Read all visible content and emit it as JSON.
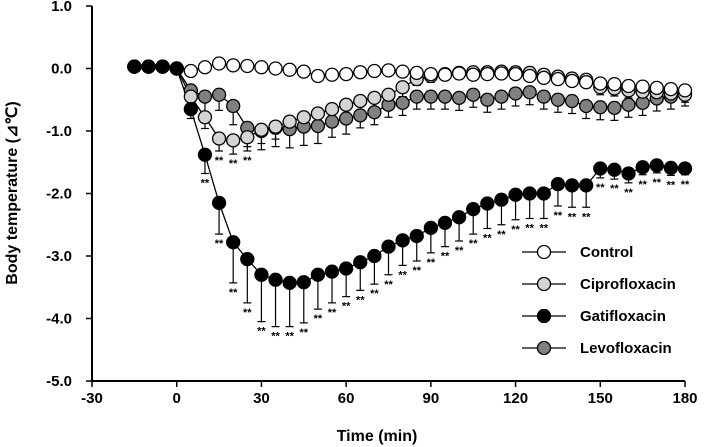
{
  "chart_data": {
    "type": "line",
    "title": "",
    "xlabel": "Time (min)",
    "ylabel": "Body temperature (⊿℃)",
    "xlim": [
      -30,
      180
    ],
    "ylim": [
      -5.0,
      1.0
    ],
    "x_ticks": [
      -30,
      0,
      30,
      60,
      90,
      120,
      150,
      180
    ],
    "x_tick_labels": [
      "-30",
      "0",
      "30",
      "60",
      "90",
      "120",
      "150",
      "180"
    ],
    "y_ticks": [
      1.0,
      0.0,
      -1.0,
      -2.0,
      -3.0,
      -4.0,
      -5.0
    ],
    "y_tick_labels": [
      "1.0",
      "0.0",
      "-1.0",
      "-2.0",
      "-3.0",
      "-4.0",
      "-5.0"
    ],
    "grid": false,
    "legend_position": "bottom-right",
    "significance_marker": "**",
    "series": [
      {
        "name": "Control",
        "fill": "#ffffff",
        "x": [
          -15,
          -10,
          -5,
          0,
          5,
          10,
          15,
          20,
          25,
          30,
          35,
          40,
          45,
          50,
          55,
          60,
          65,
          70,
          75,
          80,
          85,
          90,
          95,
          100,
          105,
          110,
          115,
          120,
          125,
          130,
          135,
          140,
          145,
          150,
          155,
          160,
          165,
          170,
          175,
          180
        ],
        "y": [
          0.03,
          0.03,
          0.03,
          0.0,
          -0.04,
          0.02,
          0.08,
          0.05,
          0.04,
          0.02,
          0.0,
          -0.02,
          -0.05,
          -0.12,
          -0.1,
          -0.09,
          -0.06,
          -0.04,
          -0.03,
          -0.05,
          -0.07,
          -0.09,
          -0.1,
          -0.08,
          -0.1,
          -0.09,
          -0.08,
          -0.09,
          -0.12,
          -0.15,
          -0.17,
          -0.2,
          -0.22,
          -0.24,
          -0.25,
          -0.28,
          -0.29,
          -0.31,
          -0.33,
          -0.35
        ],
        "err": [
          0,
          0,
          0,
          0,
          0,
          0,
          0,
          0,
          0,
          0,
          0,
          0,
          0,
          0,
          0,
          0,
          0,
          0,
          0,
          0,
          0.05,
          0.05,
          0.05,
          0.05,
          0.05,
          0.05,
          0.05,
          0.05,
          0.05,
          0.05,
          0.05,
          0.05,
          0.05,
          0.05,
          0.05,
          0.05,
          0.05,
          0.05,
          0.05,
          0.05
        ],
        "sig_x": []
      },
      {
        "name": "Ciprofloxacin",
        "fill": "#d4d4d4",
        "x": [
          -15,
          -10,
          -5,
          0,
          5,
          10,
          15,
          20,
          25,
          30,
          35,
          40,
          45,
          50,
          55,
          60,
          65,
          70,
          75,
          80,
          85,
          90,
          95,
          100,
          105,
          110,
          115,
          120,
          125,
          130,
          135,
          140,
          145,
          150,
          155,
          160,
          165,
          170,
          175,
          180
        ],
        "y": [
          0.03,
          0.03,
          0.03,
          0.0,
          -0.45,
          -0.78,
          -1.12,
          -1.15,
          -1.1,
          -0.98,
          -0.93,
          -0.85,
          -0.78,
          -0.72,
          -0.65,
          -0.58,
          -0.52,
          -0.47,
          -0.42,
          -0.3,
          -0.17,
          -0.12,
          -0.09,
          -0.07,
          -0.06,
          -0.06,
          -0.05,
          -0.06,
          -0.07,
          -0.1,
          -0.13,
          -0.16,
          -0.18,
          -0.3,
          -0.32,
          -0.35,
          -0.37,
          -0.38,
          -0.4,
          -0.42
        ],
        "err": [
          0,
          0,
          0,
          0,
          0.12,
          0.18,
          0.2,
          0.22,
          0.22,
          0.22,
          0.2,
          0.2,
          0.2,
          0.2,
          0.2,
          0.2,
          0.2,
          0.2,
          0.2,
          0.15,
          0.1,
          0.1,
          0.1,
          0.1,
          0.1,
          0.1,
          0.1,
          0.1,
          0.1,
          0.1,
          0.1,
          0.1,
          0.1,
          0.12,
          0.12,
          0.12,
          0.12,
          0.12,
          0.12,
          0.12
        ],
        "sig_x": [
          15,
          20,
          25
        ]
      },
      {
        "name": "Gatifloxacin",
        "fill": "#000000",
        "x": [
          -15,
          -10,
          -5,
          0,
          5,
          10,
          15,
          20,
          25,
          30,
          35,
          40,
          45,
          50,
          55,
          60,
          65,
          70,
          75,
          80,
          85,
          90,
          95,
          100,
          105,
          110,
          115,
          120,
          125,
          130,
          135,
          140,
          145,
          150,
          155,
          160,
          165,
          170,
          175,
          180
        ],
        "y": [
          0.03,
          0.03,
          0.03,
          0.0,
          -0.65,
          -1.38,
          -2.15,
          -2.78,
          -3.05,
          -3.3,
          -3.38,
          -3.43,
          -3.42,
          -3.3,
          -3.25,
          -3.2,
          -3.1,
          -3.0,
          -2.85,
          -2.75,
          -2.68,
          -2.55,
          -2.47,
          -2.38,
          -2.25,
          -2.16,
          -2.1,
          -2.02,
          -2.0,
          -2.0,
          -1.85,
          -1.87,
          -1.87,
          -1.6,
          -1.62,
          -1.68,
          -1.58,
          -1.55,
          -1.59,
          -1.6
        ],
        "err": [
          0,
          0,
          0,
          0,
          0.15,
          0.3,
          0.5,
          0.65,
          0.7,
          0.75,
          0.75,
          0.7,
          0.65,
          0.55,
          0.5,
          0.45,
          0.45,
          0.45,
          0.45,
          0.4,
          0.4,
          0.4,
          0.38,
          0.38,
          0.4,
          0.4,
          0.4,
          0.4,
          0.4,
          0.4,
          0.35,
          0.35,
          0.35,
          0.15,
          0.15,
          0.15,
          0.12,
          0.12,
          0.12,
          0.1
        ],
        "sig_x": [
          10,
          15,
          20,
          25,
          30,
          35,
          40,
          45,
          50,
          55,
          60,
          65,
          70,
          75,
          80,
          85,
          90,
          95,
          100,
          105,
          110,
          115,
          120,
          125,
          130,
          135,
          140,
          145,
          150,
          155,
          160,
          165,
          170,
          175,
          180
        ]
      },
      {
        "name": "Levofloxacin",
        "fill": "#808080",
        "x": [
          -15,
          -10,
          -5,
          0,
          5,
          10,
          15,
          20,
          25,
          30,
          35,
          40,
          45,
          50,
          55,
          60,
          65,
          70,
          75,
          80,
          85,
          90,
          95,
          100,
          105,
          110,
          115,
          120,
          125,
          130,
          135,
          140,
          145,
          150,
          155,
          160,
          165,
          170,
          175,
          180
        ],
        "y": [
          0.03,
          0.03,
          0.03,
          0.0,
          -0.35,
          -0.45,
          -0.42,
          -0.6,
          -0.95,
          -1.0,
          -0.95,
          -0.97,
          -0.93,
          -0.92,
          -0.85,
          -0.8,
          -0.75,
          -0.7,
          -0.58,
          -0.55,
          -0.45,
          -0.45,
          -0.45,
          -0.47,
          -0.42,
          -0.5,
          -0.45,
          -0.4,
          -0.38,
          -0.45,
          -0.5,
          -0.52,
          -0.6,
          -0.62,
          -0.63,
          -0.58,
          -0.55,
          -0.48,
          -0.45,
          -0.4
        ],
        "err": [
          0,
          0,
          0,
          0,
          0.18,
          0.25,
          0.25,
          0.3,
          0.3,
          0.3,
          0.3,
          0.3,
          0.3,
          0.28,
          0.25,
          0.25,
          0.2,
          0.2,
          0.2,
          0.2,
          0.2,
          0.2,
          0.2,
          0.2,
          0.2,
          0.2,
          0.2,
          0.2,
          0.2,
          0.2,
          0.2,
          0.2,
          0.2,
          0.2,
          0.2,
          0.2,
          0.2,
          0.2,
          0.2,
          0.2
        ],
        "sig_x": []
      }
    ]
  }
}
